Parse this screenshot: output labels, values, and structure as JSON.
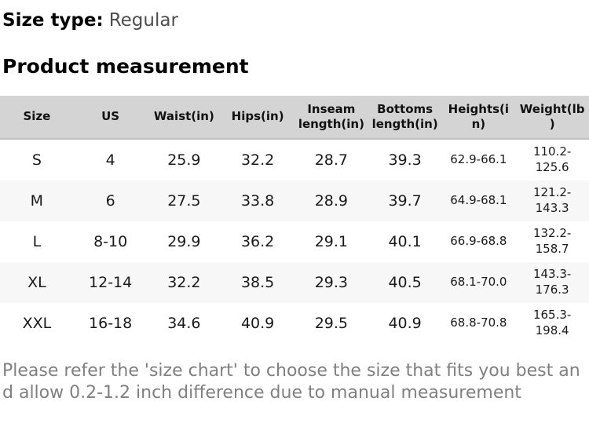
{
  "page": {
    "size_type_label": "Size type:",
    "size_type_value": "Regular",
    "section_title": "Product measurement",
    "note": "Please refer the 'size chart' to choose the size that fits you best and allow 0.2-1.2 inch difference due to manual measurement"
  },
  "table": {
    "columns": {
      "size": "Size",
      "us": "US",
      "waist": "Waist(in)",
      "hips": "Hips(in)",
      "inseam": "Inseam\nlength(in)",
      "bottoms": "Bottoms\nlength(in)",
      "heights": "Heights(i\nn)",
      "weight": "Weight(lb\n)"
    },
    "rows": [
      {
        "size": "S",
        "us": "4",
        "waist": "25.9",
        "hips": "32.2",
        "inseam": "28.7",
        "bottoms": "39.3",
        "heights": "62.9-66.1",
        "weight": "110.2-\n125.6"
      },
      {
        "size": "M",
        "us": "6",
        "waist": "27.5",
        "hips": "33.8",
        "inseam": "28.9",
        "bottoms": "39.7",
        "heights": "64.9-68.1",
        "weight": "121.2-\n143.3"
      },
      {
        "size": "L",
        "us": "8-10",
        "waist": "29.9",
        "hips": "36.2",
        "inseam": "29.1",
        "bottoms": "40.1",
        "heights": "66.9-68.8",
        "weight": "132.2-\n158.7"
      },
      {
        "size": "XL",
        "us": "12-14",
        "waist": "32.2",
        "hips": "38.5",
        "inseam": "29.3",
        "bottoms": "40.5",
        "heights": "68.1-70.0",
        "weight": "143.3-\n176.3"
      },
      {
        "size": "XXL",
        "us": "16-18",
        "waist": "34.6",
        "hips": "40.9",
        "inseam": "29.5",
        "bottoms": "40.9",
        "heights": "68.8-70.8",
        "weight": "165.3-\n198.4"
      }
    ]
  },
  "colors": {
    "header_background": "#d4d4d4",
    "stripe_background": "#f7f7f7",
    "body_text": "#1a1a1a",
    "muted_text": "#808080"
  }
}
